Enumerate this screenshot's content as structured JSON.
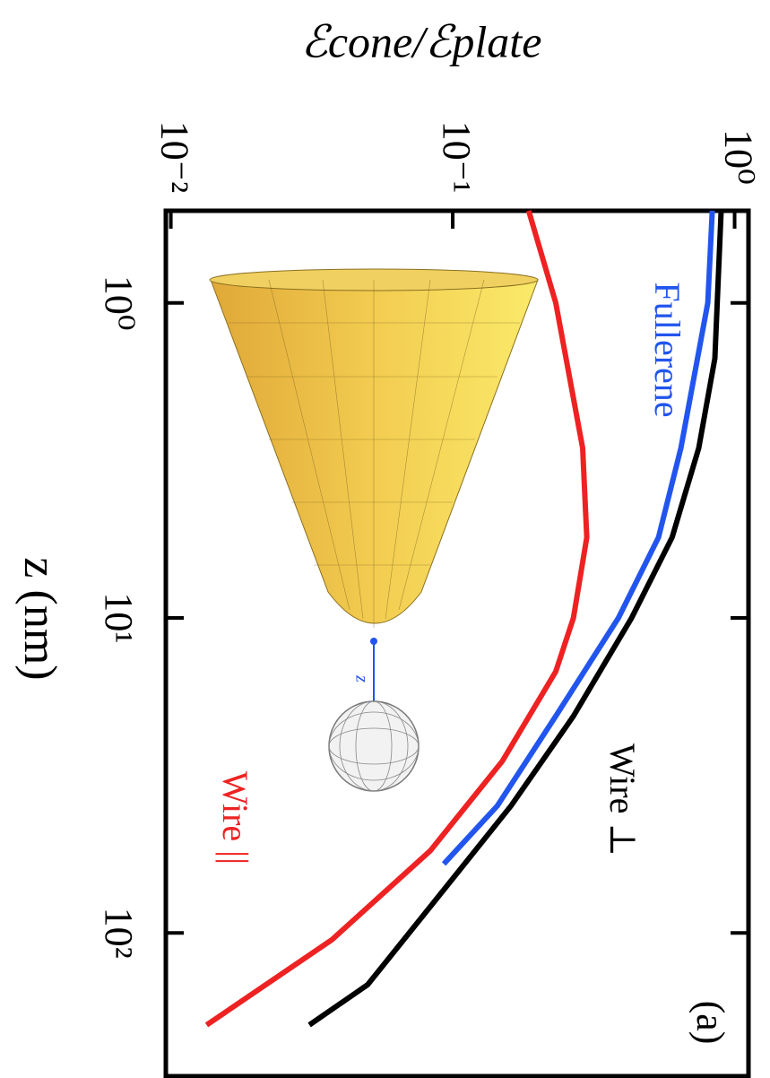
{
  "chart_data": {
    "type": "line",
    "xlabel": "z (nm)",
    "ylabel": "ℰcone/ℰplate",
    "xscale": "log",
    "yscale": "log",
    "xlim": [
      0.51,
      285
    ],
    "ylim": [
      0.0096,
      1.12
    ],
    "xticks": [
      {
        "value": 1,
        "label": "10⁰"
      },
      {
        "value": 10,
        "label": "10¹"
      },
      {
        "value": 100,
        "label": "10²"
      }
    ],
    "yticks": [
      {
        "value": 0.01,
        "label": "10⁻²"
      },
      {
        "value": 0.1,
        "label": "10⁻¹"
      },
      {
        "value": 1,
        "label": "10⁰"
      }
    ],
    "series": [
      {
        "name": "Wire ⊥",
        "color": "#000000",
        "x": [
          0.51,
          1.5,
          2.89,
          5.55,
          10,
          20.5,
          39.5,
          76,
          146,
          196
        ],
        "values": [
          0.896,
          0.851,
          0.746,
          0.6,
          0.431,
          0.268,
          0.161,
          0.0896,
          0.0499,
          0.031
        ]
      },
      {
        "name": "Fullerene",
        "color": "#2255ee",
        "x": [
          0.51,
          1,
          2.89,
          5.55,
          10,
          20.5,
          39.5,
          60.4
        ],
        "values": [
          0.833,
          0.803,
          0.645,
          0.537,
          0.387,
          0.232,
          0.144,
          0.093
        ]
      },
      {
        "name": "Wire ||",
        "color": "#ee2222",
        "x": [
          0.51,
          1,
          2.89,
          5.55,
          10,
          14.8,
          28.5,
          54.8,
          105,
          196
        ],
        "values": [
          0.186,
          0.232,
          0.289,
          0.299,
          0.268,
          0.232,
          0.15,
          0.0833,
          0.0373,
          0.0134
        ]
      }
    ],
    "annotations": [
      "(a)",
      "z"
    ]
  }
}
